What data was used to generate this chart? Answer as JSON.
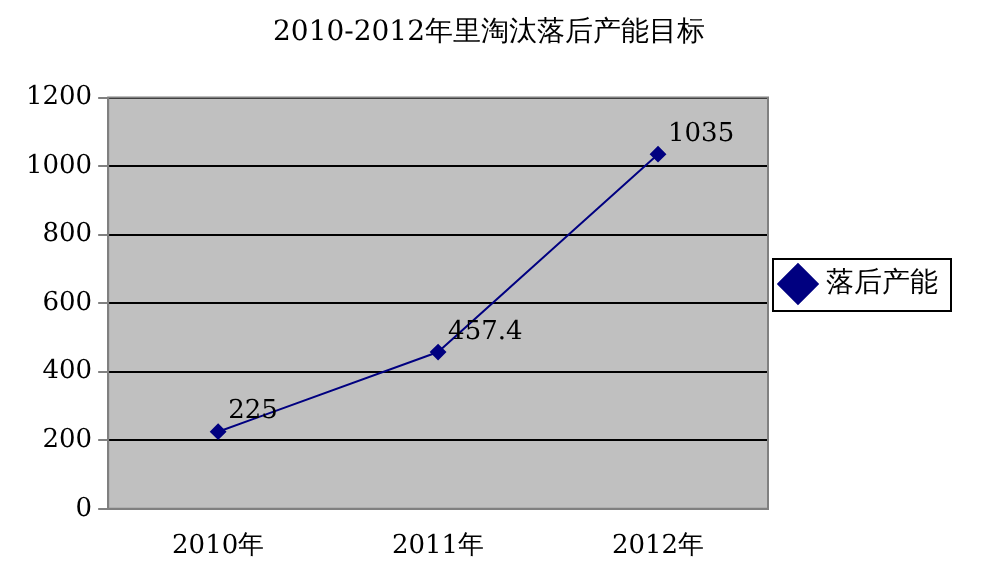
{
  "chart_data": {
    "type": "line",
    "title": "2010-2012年里淘汰落后产能目标",
    "categories": [
      "2010年",
      "2011年",
      "2012年"
    ],
    "series": [
      {
        "name": "落后产能",
        "color": "#000080",
        "values": [
          225,
          457.4,
          1035
        ]
      }
    ],
    "ylim": [
      0,
      1200
    ],
    "yticks": [
      0,
      200,
      400,
      600,
      800,
      1000,
      1200
    ],
    "grid": "y",
    "legend": "right",
    "marker": "diamond",
    "data_labels": true
  }
}
